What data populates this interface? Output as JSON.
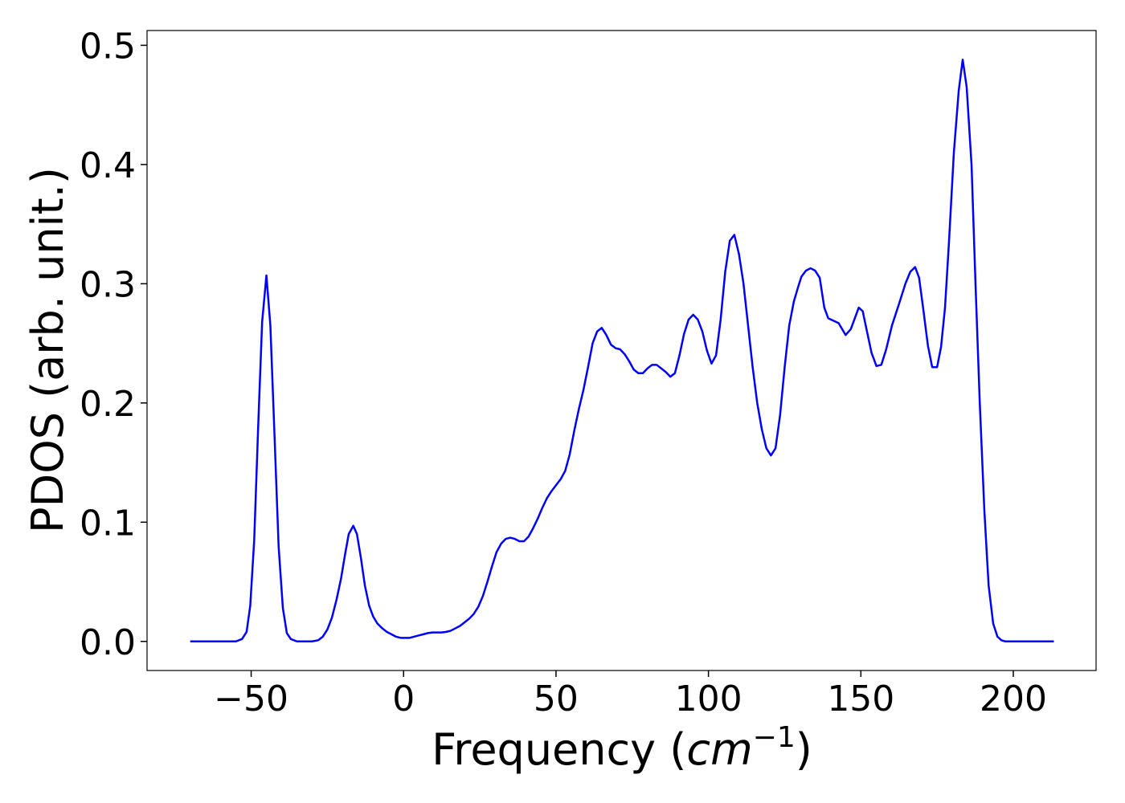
{
  "chart_data": {
    "type": "line",
    "xlabel": {
      "text": "Frequency (",
      "math": "cm",
      "sup": "−1",
      "close": ")"
    },
    "ylabel": "PDOS (arb. unit.)",
    "color": "#0000ff",
    "xlim": [
      -84.15,
      227.15
    ],
    "ylim": [
      -0.0244,
      0.5124
    ],
    "xticks": [
      {
        "value": -50,
        "label": "−50"
      },
      0,
      50,
      100,
      150,
      200
    ],
    "yticks": [
      {
        "value": 0,
        "label": "0.0"
      },
      0.1,
      0.2,
      0.3,
      0.4,
      0.5
    ],
    "x": [
      -70,
      -55,
      -53,
      -51.5,
      -50.3,
      -49,
      -47.7,
      -46.4,
      -45,
      -43.7,
      -42.3,
      -41,
      -39.6,
      -38.3,
      -37,
      -35,
      -30,
      -28,
      -26.5,
      -25,
      -23.5,
      -22,
      -20.5,
      -19.2,
      -18,
      -16.5,
      -15.3,
      -14,
      -12.7,
      -11.3,
      -10,
      -8.6,
      -7,
      -5.5,
      -4,
      -2.5,
      -1,
      0.5,
      2,
      3.5,
      5,
      6.5,
      8,
      9.5,
      11,
      12.5,
      14,
      15.5,
      17,
      18.5,
      20,
      21.5,
      23,
      24.5,
      26,
      27.5,
      29,
      30.5,
      32,
      33.5,
      35,
      36.5,
      38,
      39.5,
      41,
      42.5,
      44,
      45.5,
      47,
      48.5,
      50,
      51.5,
      53,
      54.5,
      56,
      57.5,
      59,
      60.5,
      62,
      63.5,
      65,
      66.5,
      68,
      69.5,
      71,
      72.5,
      74,
      75.5,
      77,
      78.5,
      80,
      81.5,
      83,
      84.5,
      86,
      87.5,
      89,
      90.5,
      92,
      93.5,
      95,
      96.5,
      98,
      99.5,
      101,
      102.5,
      104,
      105.5,
      107,
      108.5,
      110,
      111.5,
      113,
      114.5,
      116,
      117.5,
      119,
      120.5,
      122,
      123.5,
      125,
      126.5,
      128,
      129.5,
      130.5,
      132,
      133.5,
      135,
      136.5,
      138,
      139.3,
      142.7,
      145,
      146.7,
      149.3,
      150.6,
      152,
      153.5,
      155.1,
      156.7,
      158.3,
      160.2,
      162.5,
      164.6,
      166.2,
      167.8,
      169.1,
      170.5,
      172,
      173.4,
      175,
      176.3,
      177.6,
      178.9,
      180.5,
      182.1,
      183.4,
      184.7,
      186.3,
      187.6,
      189,
      190.5,
      191.9,
      193.4,
      194.8,
      196.1,
      197.4,
      213.3
    ],
    "values": [
      0,
      0,
      0.002,
      0.008,
      0.03,
      0.085,
      0.18,
      0.268,
      0.307,
      0.265,
      0.17,
      0.08,
      0.028,
      0.007,
      0.002,
      0,
      0,
      0.001,
      0.004,
      0.01,
      0.02,
      0.035,
      0.053,
      0.073,
      0.09,
      0.097,
      0.09,
      0.07,
      0.047,
      0.03,
      0.021,
      0.015,
      0.011,
      0.008,
      0.006,
      0.004,
      0.003,
      0.003,
      0.003,
      0.004,
      0.005,
      0.006,
      0.007,
      0.0075,
      0.0075,
      0.0075,
      0.008,
      0.009,
      0.011,
      0.013,
      0.016,
      0.019,
      0.023,
      0.029,
      0.038,
      0.05,
      0.063,
      0.075,
      0.082,
      0.086,
      0.087,
      0.086,
      0.084,
      0.084,
      0.088,
      0.095,
      0.103,
      0.112,
      0.12,
      0.126,
      0.131,
      0.136,
      0.143,
      0.157,
      0.177,
      0.195,
      0.211,
      0.23,
      0.25,
      0.26,
      0.263,
      0.257,
      0.249,
      0.246,
      0.245,
      0.241,
      0.235,
      0.228,
      0.225,
      0.225,
      0.229,
      0.232,
      0.232,
      0.229,
      0.226,
      0.222,
      0.225,
      0.24,
      0.258,
      0.27,
      0.274,
      0.27,
      0.26,
      0.244,
      0.233,
      0.24,
      0.27,
      0.31,
      0.336,
      0.341,
      0.325,
      0.3,
      0.265,
      0.23,
      0.2,
      0.178,
      0.162,
      0.156,
      0.162,
      0.19,
      0.23,
      0.265,
      0.285,
      0.298,
      0.306,
      0.311,
      0.313,
      0.311,
      0.305,
      0.28,
      0.271,
      0.267,
      0.257,
      0.262,
      0.28,
      0.277,
      0.26,
      0.242,
      0.231,
      0.232,
      0.245,
      0.265,
      0.283,
      0.3,
      0.31,
      0.314,
      0.305,
      0.278,
      0.248,
      0.23,
      0.23,
      0.247,
      0.28,
      0.335,
      0.41,
      0.462,
      0.488,
      0.465,
      0.4,
      0.3,
      0.2,
      0.11,
      0.047,
      0.015,
      0.004,
      0.001,
      0,
      0
    ]
  }
}
